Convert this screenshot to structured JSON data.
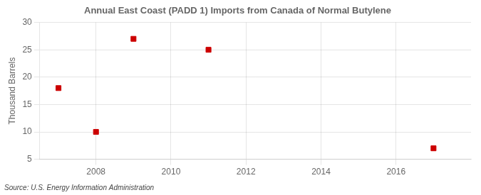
{
  "chart_data": {
    "type": "scatter",
    "title": "Annual East Coast (PADD 1) Imports from Canada of Normal Butylene",
    "ylabel": "Thousand Barrels",
    "annotations": [
      "Source: U.S. Energy Information Administration"
    ],
    "x": [
      2007,
      2008,
      2009,
      2011,
      2017
    ],
    "values": [
      18,
      10,
      27,
      25,
      7
    ],
    "color": "#cc0000",
    "marker": "square",
    "xlim": [
      2006.5,
      2018
    ],
    "xticks": [
      2008,
      2010,
      2012,
      2014,
      2016
    ],
    "ylim": [
      5,
      30
    ],
    "yticks": [
      5,
      10,
      15,
      20,
      25,
      30
    ],
    "grid": true
  }
}
